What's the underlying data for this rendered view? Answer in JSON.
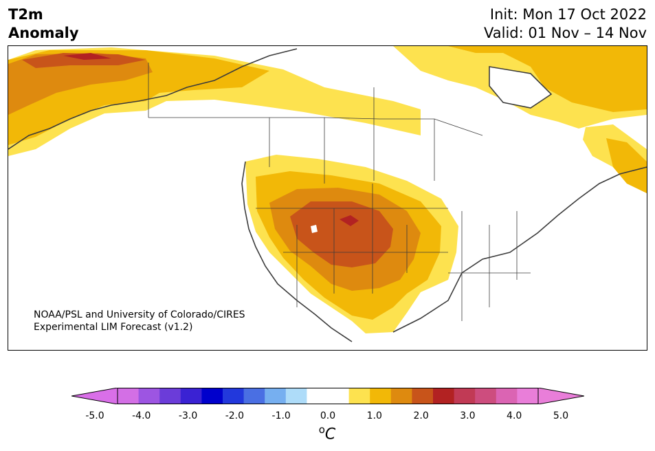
{
  "title": {
    "line1": "T2m",
    "line2": "Anomaly"
  },
  "info": {
    "init": "Init: Mon 17 Oct 2022",
    "valid": "Valid: 01 Nov – 14 Nov"
  },
  "credit": {
    "line1": "NOAA/PSL and University of Colorado/CIRES",
    "line2": "Experimental LIM Forecast (v1.2)"
  },
  "colorbar": {
    "unit_base": "C",
    "unit_prefix": "o",
    "ticks": [
      "-5.0",
      "-4.0",
      "-3.0",
      "-2.0",
      "-1.0",
      "0.0",
      "1.0",
      "2.0",
      "3.0",
      "4.0",
      "5.0"
    ],
    "under_color": "#d96fe8",
    "over_color": "#e97ed9",
    "colors": [
      "#d36fe5",
      "#9d55e2",
      "#6b3cd9",
      "#3a22d3",
      "#0000cc",
      "#2238dc",
      "#4a6fe3",
      "#76aff0",
      "#aedcf9",
      "#ffffff",
      "#ffffff",
      "#fde24f",
      "#f2b807",
      "#de8a0f",
      "#c8541a",
      "#b22222",
      "#c13a55",
      "#cd4d7e",
      "#db64b3",
      "#e97ed9"
    ]
  },
  "anomaly_colors": {
    "c05": "#fde24f",
    "c10": "#f2b807",
    "c15": "#de8a0f",
    "c20": "#c8541a",
    "c25": "#b22222"
  }
}
